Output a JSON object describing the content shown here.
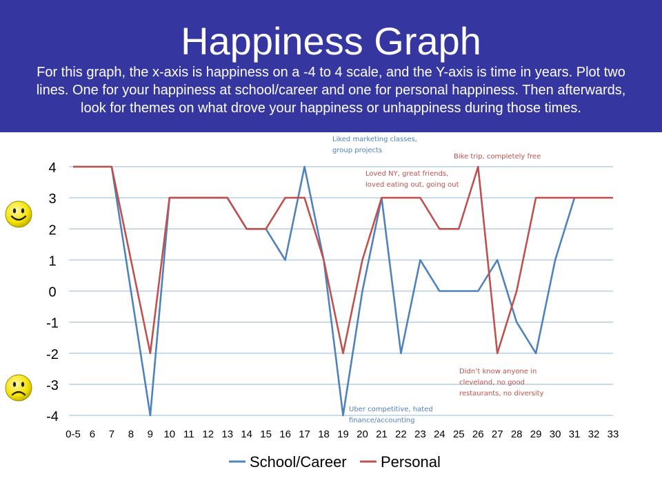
{
  "slide": {
    "title": "Happiness Graph",
    "subtitle": "For this graph, the x-axis is happiness on a -4 to 4 scale, and the Y-axis is time in years.  Plot two lines.  One for your happiness at school/career and one for personal happiness.  Then afterwards, look for themes on what drove your happiness or unhappiness during those times."
  },
  "colors": {
    "background": "#3536a0",
    "school": "#4f81bd",
    "personal": "#c0504d",
    "grid": "#a6c7dd",
    "face": "#f5e400"
  },
  "icons": [
    "happy-face-icon",
    "sad-face-icon"
  ],
  "chart_data": {
    "type": "line",
    "categories": [
      "0-5",
      "6",
      "7",
      "8",
      "9",
      "10",
      "11",
      "12",
      "13",
      "14",
      "15",
      "16",
      "17",
      "18",
      "19",
      "20",
      "21",
      "22",
      "23",
      "24",
      "25",
      "26",
      "27",
      "28",
      "29",
      "30",
      "31",
      "32",
      "33"
    ],
    "ylim": [
      -4,
      4
    ],
    "yticks": [
      "4",
      "3",
      "2",
      "1",
      "0",
      "-1",
      "-2",
      "-3",
      "-4"
    ],
    "grid": true,
    "legend": "bottom",
    "series": [
      {
        "name": "School/Career",
        "color": "#4f81bd",
        "values": [
          4,
          4,
          4,
          0,
          -4,
          3,
          3,
          3,
          3,
          2,
          2,
          1,
          4,
          1,
          -4,
          0,
          3,
          -2,
          1,
          0,
          0,
          0,
          1,
          -1,
          -2,
          1,
          3,
          null,
          null
        ]
      },
      {
        "name": "Personal",
        "color": "#c0504d",
        "values": [
          4,
          4,
          4,
          1,
          -2,
          3,
          3,
          3,
          3,
          2,
          2,
          3,
          3,
          1,
          -2,
          1,
          3,
          3,
          3,
          2,
          2,
          4,
          -2,
          0,
          3,
          3,
          3,
          3,
          3
        ]
      }
    ],
    "annotations": [
      {
        "id": "liked-marketing",
        "series": "School/Career",
        "lines": [
          "Liked marketing classes,",
          "group projects"
        ]
      },
      {
        "id": "bike-trip",
        "series": "Personal",
        "lines": [
          "Bike trip, completely free"
        ]
      },
      {
        "id": "loved-ny",
        "series": "Personal",
        "lines": [
          "Loved NY, great friends,",
          "loved eating out, going out"
        ]
      },
      {
        "id": "cleveland",
        "series": "Personal",
        "lines": [
          "Didn’t know anyone in",
          "cleveland, no good",
          "restaurants, no diversity"
        ]
      },
      {
        "id": "uber-competitive",
        "series": "School/Career",
        "lines": [
          "Uber competitive, hated",
          "finance/accounting"
        ]
      }
    ]
  }
}
